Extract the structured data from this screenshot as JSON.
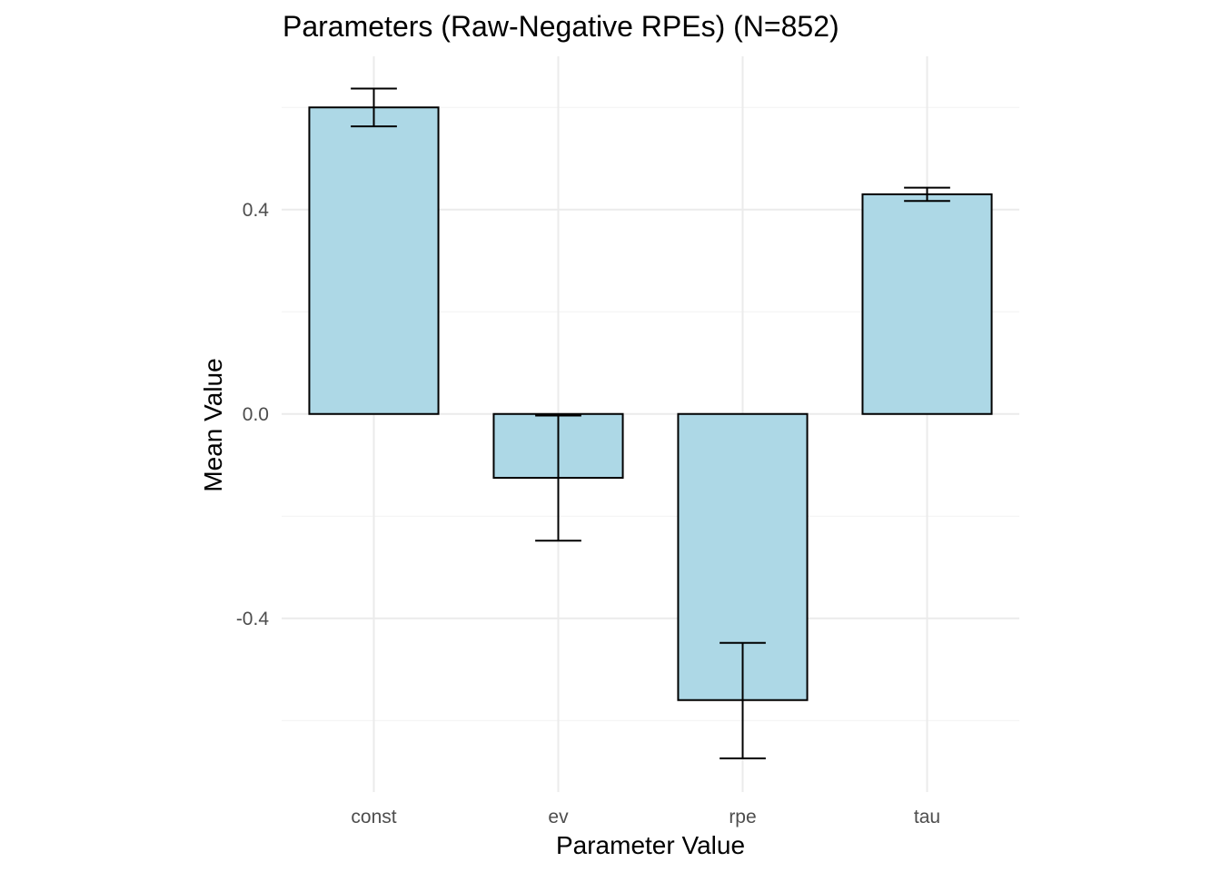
{
  "chart_data": {
    "type": "bar",
    "title": "Parameters (Raw-Negative RPEs) (N=852)",
    "xlabel": "Parameter Value",
    "ylabel": "Mean Value",
    "categories": [
      "const",
      "ev",
      "rpe",
      "tau"
    ],
    "values": [
      0.6,
      -0.125,
      -0.56,
      0.43
    ],
    "error_low": [
      0.563,
      -0.248,
      -0.674,
      0.417
    ],
    "error_high": [
      0.637,
      -0.003,
      -0.448,
      0.443
    ],
    "ylim": [
      -0.74,
      0.7
    ],
    "y_ticks": [
      -0.4,
      0.0,
      0.4
    ],
    "y_tick_labels": [
      "-0.4",
      "0.0",
      "0.4"
    ],
    "grid": true,
    "legend": "none",
    "colors": {
      "bar_fill": "#add8e6",
      "bar_stroke": "#000000",
      "grid_major": "#ebebeb",
      "grid_minor": "#f2f2f2",
      "error_bar": "#000000"
    }
  }
}
